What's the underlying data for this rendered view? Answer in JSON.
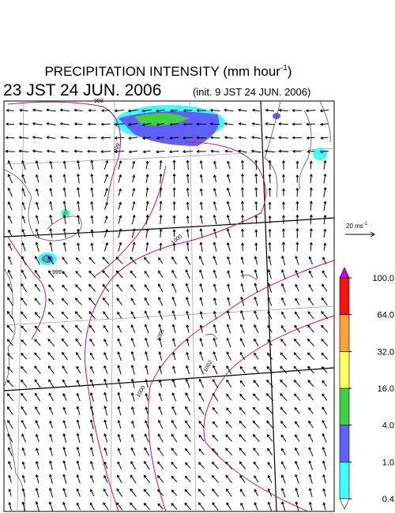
{
  "header": {
    "title": "PRECIPITATION INTENSITY (mm hour",
    "title_exponent": "-1",
    "title_close": ")",
    "valid_time": "23 JST 24 JUN. 2006",
    "init_time": "(init. 9 JST 24 JUN. 2006)"
  },
  "wind_scale": {
    "label": "20 ms",
    "exponent": "-1"
  },
  "colorbar": {
    "levels": [
      0.4,
      {
        "value": 1,
        "label": "1.0"
      },
      {
        "value": 4,
        "label": "4.0"
      },
      {
        "value": 16,
        "label": "16.0"
      },
      {
        "value": 32,
        "label": "32.0"
      },
      {
        "value": 64,
        "label": "64.0"
      },
      {
        "value": 100,
        "label": "100.0"
      }
    ],
    "colors": [
      "#40ffff",
      "#6060ff",
      "#40d040",
      "#ffff60",
      "#ffa040",
      "#ff1010"
    ],
    "over_color": "#c000ff",
    "under_color": "#ffffff"
  },
  "isobar_labels": [
    "998",
    "999",
    "1000",
    "1001",
    "1002",
    "999",
    "1000"
  ]
}
